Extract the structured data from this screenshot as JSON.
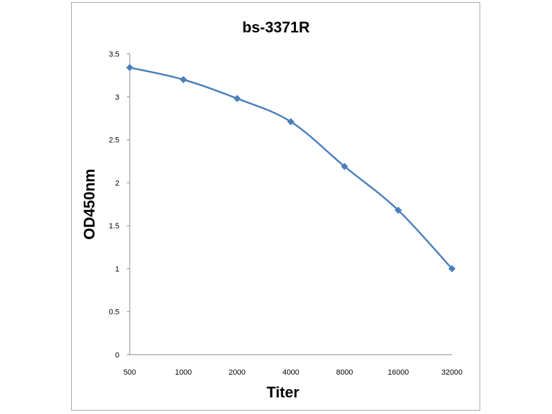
{
  "chart_data": {
    "type": "line",
    "title": "bs-3371R",
    "xlabel": "Titer",
    "ylabel": "OD450nm",
    "categories": [
      "500",
      "1000",
      "2000",
      "4000",
      "8000",
      "16000",
      "32000"
    ],
    "series": [
      {
        "values": [
          3.34,
          3.2,
          2.98,
          2.71,
          2.19,
          1.68,
          1.0
        ]
      }
    ],
    "ylim": [
      0,
      3.5
    ],
    "yticks": [
      "0",
      "0.5",
      "1",
      "1.5",
      "2",
      "2.5",
      "3",
      "3.5"
    ],
    "grid": false,
    "legend": "none",
    "colors": {
      "series": "#4a7ebb",
      "axis": "#868686",
      "frame": "#a6a6a6"
    }
  }
}
